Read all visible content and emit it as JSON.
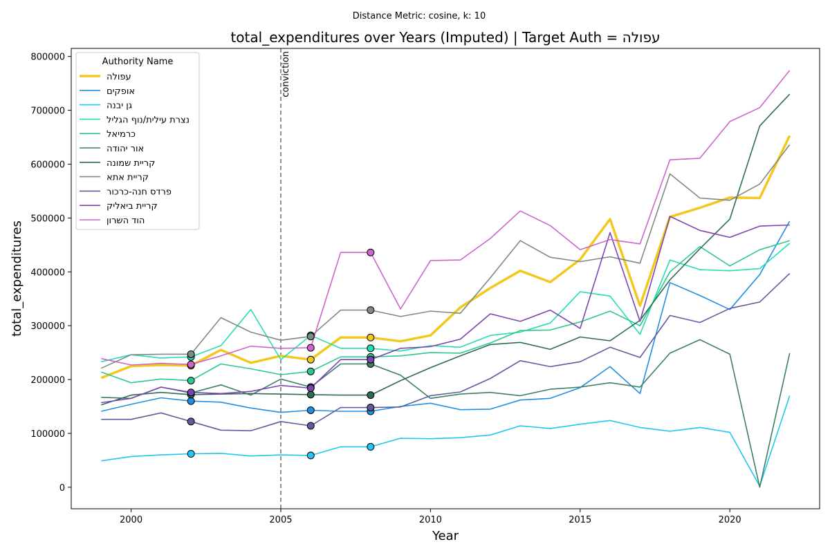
{
  "chart_data": {
    "type": "line",
    "suptitle": "Distance Metric: cosine, k: 10",
    "title": "total_expenditures over Years (Imputed) | Target Auth = עפולה",
    "xlabel": "Year",
    "ylabel": "total_expenditures",
    "xlim": [
      1998,
      2023
    ],
    "ylim": [
      -40000,
      815000
    ],
    "xticks": [
      2000,
      2005,
      2010,
      2015,
      2020
    ],
    "yticks": [
      0,
      100000,
      200000,
      300000,
      400000,
      500000,
      600000,
      700000,
      800000
    ],
    "x": [
      1999,
      2000,
      2001,
      2002,
      2003,
      2004,
      2005,
      2006,
      2007,
      2008,
      2009,
      2010,
      2011,
      2012,
      2013,
      2014,
      2015,
      2016,
      2017,
      2018,
      2019,
      2020,
      2021,
      2022
    ],
    "grid": false,
    "legend": {
      "title": "Authority Name",
      "placement": "top-left"
    },
    "annotation": {
      "x": 2005,
      "label": "conviction",
      "color": "#777777"
    },
    "imputed_years": [
      2002,
      2006,
      2008
    ],
    "series": [
      {
        "name": "עפולה",
        "color": "#f2c81e",
        "target": true,
        "values": [
          203000,
          225000,
          227000,
          226000,
          255000,
          231000,
          244000,
          237000,
          278000,
          278000,
          271000,
          282000,
          334000,
          370000,
          402000,
          381000,
          423000,
          498000,
          337000,
          502000,
          519000,
          538000,
          537000,
          653000
        ]
      },
      {
        "name": "אופקים",
        "color": "#1f8fe0",
        "values": [
          141000,
          154000,
          166000,
          160000,
          158000,
          147000,
          139000,
          143000,
          141000,
          141000,
          150000,
          156000,
          144000,
          145000,
          162000,
          165000,
          185000,
          224000,
          174000,
          380000,
          356000,
          330000,
          395000,
          494000
        ]
      },
      {
        "name": "גן יבנה",
        "color": "#21c7f0",
        "values": [
          49000,
          57000,
          60000,
          62000,
          63000,
          58000,
          60000,
          59000,
          75000,
          75000,
          91000,
          90000,
          92000,
          97000,
          114000,
          109000,
          117000,
          124000,
          111000,
          104000,
          111000,
          102000,
          2000,
          170000
        ]
      },
      {
        "name": "נצרת עילית/נוף הגליל",
        "color": "#25dcb5",
        "values": [
          233000,
          246000,
          240000,
          242000,
          263000,
          330000,
          237000,
          282000,
          258000,
          258000,
          253000,
          263000,
          260000,
          282000,
          288000,
          305000,
          363000,
          355000,
          284000,
          422000,
          404000,
          402000,
          406000,
          453000
        ]
      },
      {
        "name": "כרמיאל",
        "color": "#2cc98c",
        "values": [
          214000,
          194000,
          201000,
          198000,
          229000,
          220000,
          209000,
          215000,
          242000,
          242000,
          244000,
          250000,
          249000,
          268000,
          291000,
          292000,
          307000,
          327000,
          300000,
          400000,
          447000,
          411000,
          441000,
          458000
        ]
      },
      {
        "name": "אור יהודה",
        "color": "#3b7e63",
        "values": [
          167000,
          165000,
          186000,
          175000,
          190000,
          171000,
          201000,
          186000,
          229000,
          229000,
          208000,
          165000,
          173000,
          176000,
          170000,
          182000,
          186000,
          194000,
          186000,
          249000,
          274000,
          247000,
          0,
          249000
        ]
      },
      {
        "name": "קריית שמונה",
        "color": "#2f6b55",
        "values": [
          153000,
          171000,
          176000,
          172000,
          173000,
          174000,
          173000,
          172000,
          171000,
          171000,
          198000,
          222000,
          244000,
          265000,
          269000,
          256000,
          279000,
          272000,
          310000,
          385000,
          443000,
          498000,
          671000,
          730000
        ]
      },
      {
        "name": "קריית אתא",
        "color": "#7f8a84",
        "values": [
          221000,
          246000,
          247000,
          247000,
          315000,
          288000,
          273000,
          280000,
          329000,
          329000,
          317000,
          327000,
          323000,
          389000,
          458000,
          427000,
          419000,
          428000,
          416000,
          582000,
          537000,
          533000,
          563000,
          636000
        ]
      },
      {
        "name": "פרדס חנה-כרכור",
        "color": "#5e5c9e",
        "values": [
          126000,
          126000,
          138000,
          122000,
          106000,
          105000,
          122000,
          114000,
          148000,
          148000,
          149000,
          170000,
          177000,
          202000,
          235000,
          224000,
          233000,
          260000,
          241000,
          319000,
          306000,
          332000,
          344000,
          397000
        ]
      },
      {
        "name": "קריית ביאליק",
        "color": "#7b45b0",
        "values": [
          157000,
          165000,
          186000,
          176000,
          174000,
          178000,
          189000,
          184000,
          237000,
          237000,
          258000,
          261000,
          275000,
          322000,
          308000,
          329000,
          295000,
          473000,
          308000,
          503000,
          477000,
          464000,
          485000,
          487000
        ]
      },
      {
        "name": "הוד השרון",
        "color": "#cc66cc",
        "values": [
          239000,
          227000,
          230000,
          228000,
          244000,
          262000,
          258000,
          259000,
          436000,
          436000,
          331000,
          421000,
          422000,
          462000,
          513000,
          486000,
          441000,
          460000,
          452000,
          608000,
          611000,
          679000,
          705000,
          774000
        ]
      }
    ]
  }
}
